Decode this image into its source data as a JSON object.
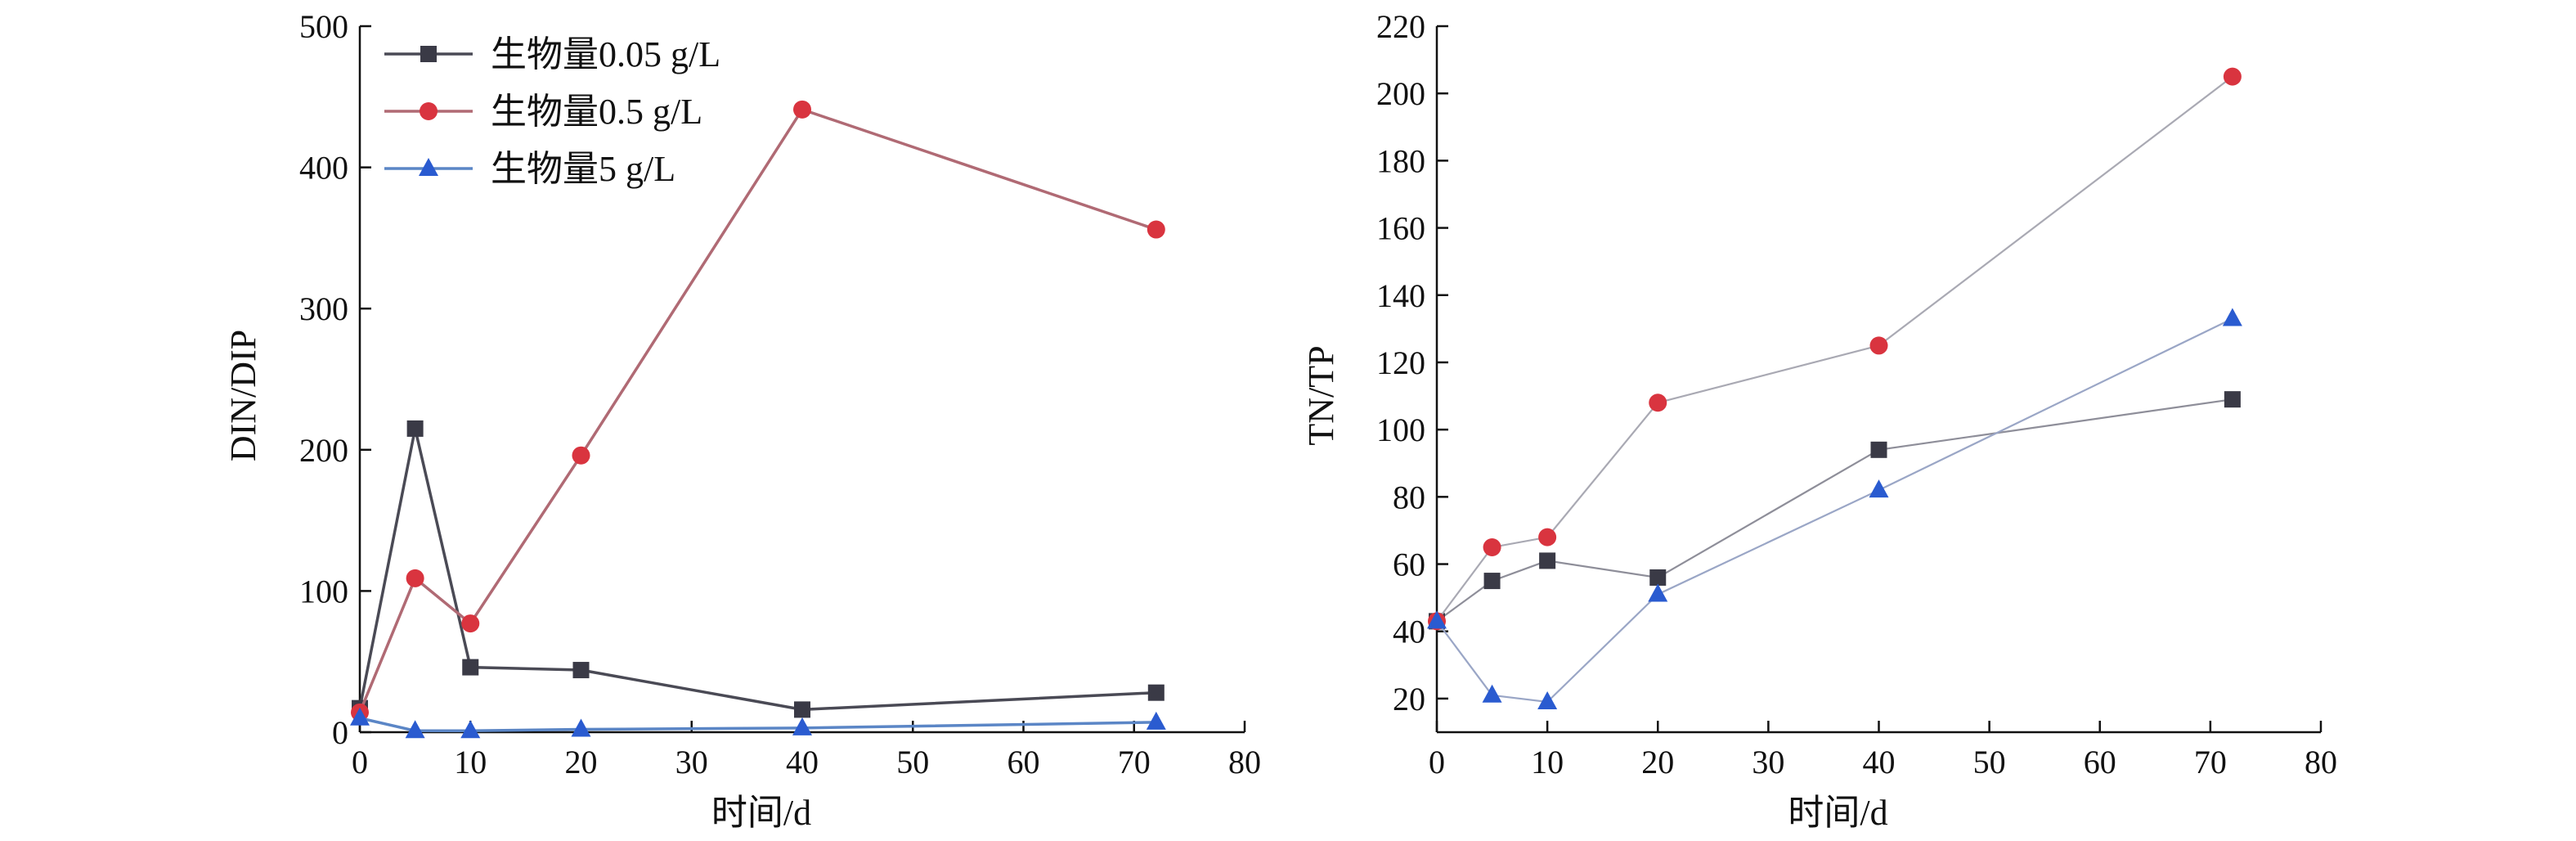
{
  "chart_data": [
    {
      "type": "line",
      "title": "",
      "xlabel": "时间/d",
      "ylabel": "DIN/DIP",
      "xlim": [
        0,
        80
      ],
      "ylim": [
        0,
        500
      ],
      "xticks": [
        0,
        10,
        20,
        30,
        40,
        50,
        60,
        70,
        80
      ],
      "yticks": [
        0,
        100,
        200,
        300,
        400,
        500
      ],
      "legend": "top-left",
      "series": [
        {
          "name": "生物量0.05 g/L",
          "marker": "square",
          "color": "#3a3a46",
          "line_color": "#4a4a55",
          "x": [
            0,
            5,
            10,
            20,
            40,
            72
          ],
          "y": [
            17,
            215,
            46,
            44,
            16,
            28
          ]
        },
        {
          "name": "生物量0.5 g/L",
          "marker": "circle",
          "color": "#d9343f",
          "line_color": "#b06a74",
          "x": [
            0,
            5,
            10,
            20,
            40,
            72
          ],
          "y": [
            14,
            109,
            77,
            196,
            441,
            356
          ]
        },
        {
          "name": "生物量5 g/L",
          "marker": "triangle",
          "color": "#2a5bd0",
          "line_color": "#5b86c6",
          "x": [
            0,
            5,
            10,
            20,
            40,
            72
          ],
          "y": [
            10,
            1,
            1,
            2,
            3,
            7
          ]
        }
      ]
    },
    {
      "type": "line",
      "title": "",
      "xlabel": "时间/d",
      "ylabel": "TN/TP",
      "xlim": [
        0,
        80
      ],
      "ylim": [
        10,
        220
      ],
      "xticks": [
        0,
        10,
        20,
        30,
        40,
        50,
        60,
        70,
        80
      ],
      "yticks": [
        20,
        40,
        60,
        80,
        100,
        120,
        140,
        160,
        180,
        200,
        220
      ],
      "legend": "none",
      "series": [
        {
          "marker": "square",
          "color": "#3a3a46",
          "line_color": "#8e8e99",
          "x": [
            0,
            5,
            10,
            20,
            40,
            72
          ],
          "y": [
            43,
            55,
            61,
            56,
            94,
            109
          ]
        },
        {
          "marker": "circle",
          "color": "#d9343f",
          "line_color": "#a9a9b3",
          "x": [
            0,
            5,
            10,
            20,
            40,
            72
          ],
          "y": [
            43,
            65,
            68,
            108,
            125,
            205
          ]
        },
        {
          "marker": "triangle",
          "color": "#2a5bd0",
          "line_color": "#9aa6c6",
          "x": [
            0,
            5,
            10,
            20,
            40,
            72
          ],
          "y": [
            43,
            21,
            19,
            51,
            82,
            133
          ]
        }
      ]
    }
  ]
}
